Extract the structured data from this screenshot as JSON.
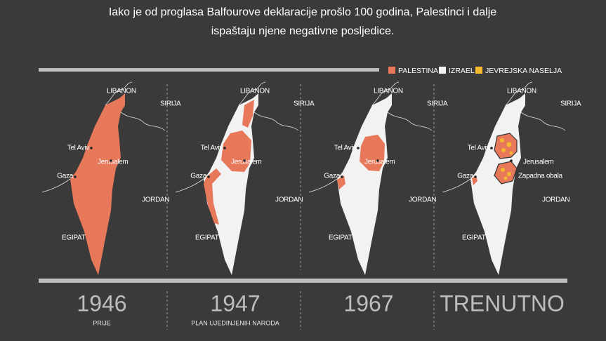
{
  "header": {
    "title_lines": [
      "Iako je od proglasa Balfourove deklaracije prošlo 100 godina, Palestinci i dalje",
      "ispaštaju njene negativne posljedice."
    ]
  },
  "legend": [
    {
      "label": "PALESTINA",
      "color": "#e8785a"
    },
    {
      "label": "IZRAEL",
      "color": "#f2f2f2"
    },
    {
      "label": "JEVREJSKA NASELJA",
      "color": "#f5b82e"
    }
  ],
  "panels": [
    {
      "year": "1946",
      "caption": "PRIJE",
      "labels": [
        "LIBANON",
        "SIRIJA",
        "Tel Aviv",
        "Jerusalem",
        "Gaza",
        "JORDAN",
        "EGIPAT"
      ]
    },
    {
      "year": "1947",
      "caption": "PLAN UJEDINJENIH NARODA",
      "labels": [
        "LIBANON",
        "SIRIJA",
        "Tel Aviv",
        "Jerusalem",
        "Gaza",
        "JORDAN",
        "EGIPAT"
      ]
    },
    {
      "year": "1967",
      "labels": [
        "LIBANON",
        "SIRIJA",
        "Tel Aviv",
        "Jerusalem",
        "Gaza",
        "JORDAN",
        "EGIPAT"
      ]
    },
    {
      "year": "TRENUTNO",
      "labels": [
        "LIBANON",
        "SIRIJA",
        "Tel Aviv",
        "Jerusalem",
        "Gaza",
        "JORDAN",
        "EGIPAT",
        "Zapadna obala"
      ]
    }
  ]
}
